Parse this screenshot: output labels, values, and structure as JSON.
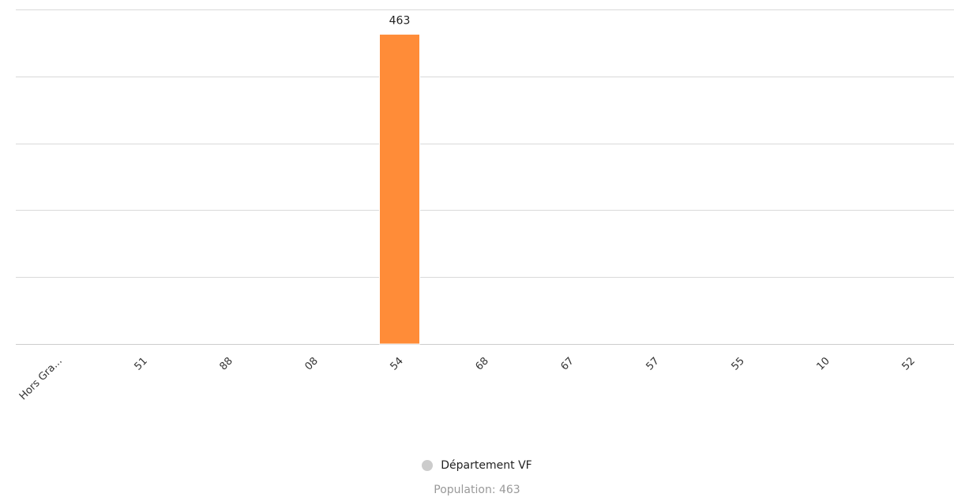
{
  "chart_data": {
    "type": "bar",
    "categories": [
      "Hors Gra...",
      "51",
      "88",
      "08",
      "54",
      "68",
      "67",
      "57",
      "55",
      "10",
      "52"
    ],
    "series": [
      {
        "name": "Département VF",
        "values": [
          0,
          0,
          0,
          0,
          463,
          0,
          0,
          0,
          0,
          0,
          0
        ]
      }
    ],
    "data_labels": [
      "",
      "",
      "",
      "",
      "463",
      "",
      "",
      "",
      "",
      "",
      ""
    ],
    "ylim": [
      0,
      500
    ],
    "y_grid_values": [
      0,
      100,
      200,
      300,
      400,
      500
    ],
    "grid": true,
    "legend_position": "bottom-center",
    "bar_color": "#ff8c38",
    "legend_dot_color": "#cccccc"
  },
  "legend": {
    "label": "Département VF",
    "sub_label": "Population: 463"
  }
}
